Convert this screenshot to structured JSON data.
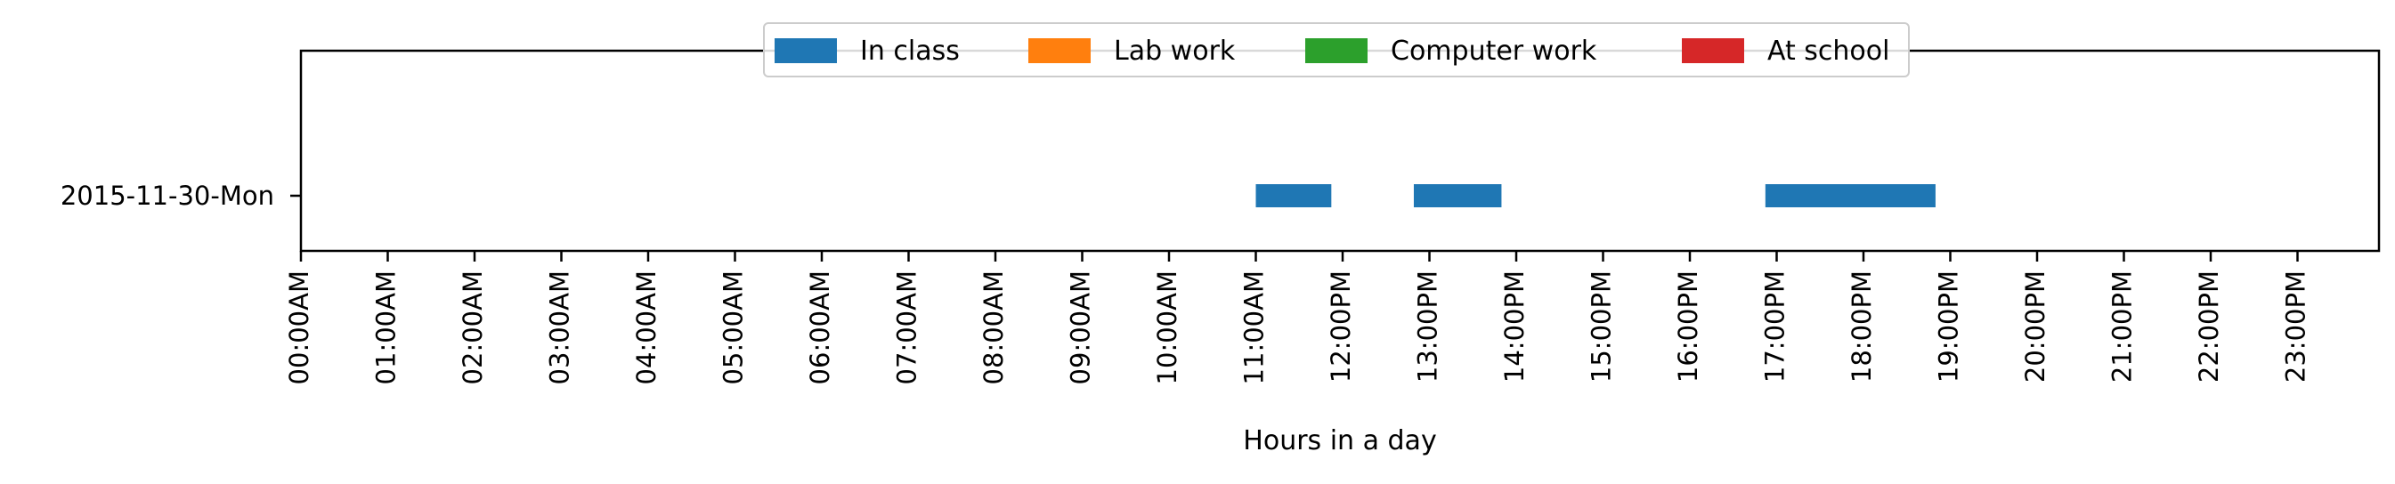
{
  "chart_data": {
    "type": "bar",
    "orientation": "horizontal",
    "title": "",
    "xlabel": "Hours in a day",
    "ylabel": "",
    "xlim": [
      0,
      24
    ],
    "categories": [
      "2015-11-30-Mon"
    ],
    "x_ticks": [
      0,
      1,
      2,
      3,
      4,
      5,
      6,
      7,
      8,
      9,
      10,
      11,
      12,
      13,
      14,
      15,
      16,
      17,
      18,
      19,
      20,
      21,
      22,
      23
    ],
    "x_tick_labels": [
      "00:00AM",
      "01:00AM",
      "02:00AM",
      "03:00AM",
      "04:00AM",
      "05:00AM",
      "06:00AM",
      "07:00AM",
      "08:00AM",
      "09:00AM",
      "10:00AM",
      "11:00AM",
      "12:00PM",
      "13:00PM",
      "14:00PM",
      "15:00PM",
      "16:00PM",
      "17:00PM",
      "18:00PM",
      "19:00PM",
      "20:00PM",
      "21:00PM",
      "22:00PM",
      "23:00PM"
    ],
    "grid": false,
    "legend_position": "top-center",
    "series": [
      {
        "name": "In class",
        "color": "#1f77b4",
        "intervals": [
          {
            "category": "2015-11-30-Mon",
            "start": 11.0,
            "end": 11.87
          },
          {
            "category": "2015-11-30-Mon",
            "start": 12.82,
            "end": 13.83
          },
          {
            "category": "2015-11-30-Mon",
            "start": 16.87,
            "end": 18.83
          }
        ]
      },
      {
        "name": "Lab work",
        "color": "#ff7f0e",
        "intervals": []
      },
      {
        "name": "Computer work",
        "color": "#2ca02c",
        "intervals": []
      },
      {
        "name": "At school",
        "color": "#d62728",
        "intervals": []
      }
    ]
  }
}
